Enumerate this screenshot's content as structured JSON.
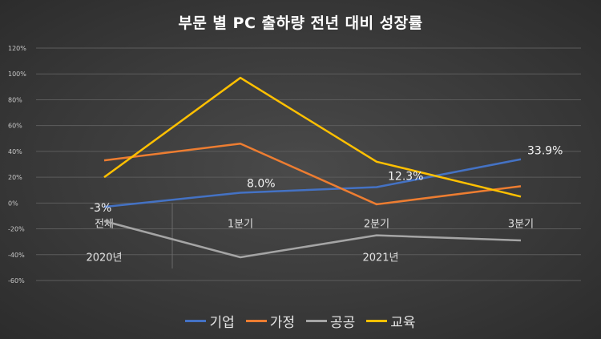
{
  "chart_data": {
    "type": "line",
    "title": "부문 별 PC 출하량 전년 대비 성장률",
    "categories": [
      "전체",
      "1분기",
      "2분기",
      "3분기"
    ],
    "groups": [
      {
        "label": "2020년",
        "span": [
          0,
          0
        ]
      },
      {
        "label": "2021년",
        "span": [
          1,
          3
        ]
      }
    ],
    "ylim": [
      -60,
      120
    ],
    "yticks": [
      "-60%",
      "-40%",
      "-20%",
      "0%",
      "20%",
      "40%",
      "60%",
      "80%",
      "100%",
      "120%"
    ],
    "ytick_values": [
      -60,
      -40,
      -20,
      0,
      20,
      40,
      60,
      80,
      100,
      120
    ],
    "series": [
      {
        "name": "기업",
        "color": "#4472c4",
        "values": [
          -3,
          8.0,
          12.3,
          33.9
        ],
        "data_labels": [
          "-3%",
          "8.0%",
          "12.3%",
          "33.9%"
        ]
      },
      {
        "name": "가정",
        "color": "#ed7d31",
        "values": [
          33,
          46,
          -1,
          13
        ]
      },
      {
        "name": "공공",
        "color": "#a5a5a5",
        "values": [
          -14,
          -42,
          -25,
          -29
        ]
      },
      {
        "name": "교육",
        "color": "#ffc000",
        "values": [
          20,
          97,
          32,
          5
        ]
      }
    ],
    "legend_position": "bottom",
    "grid": true
  }
}
